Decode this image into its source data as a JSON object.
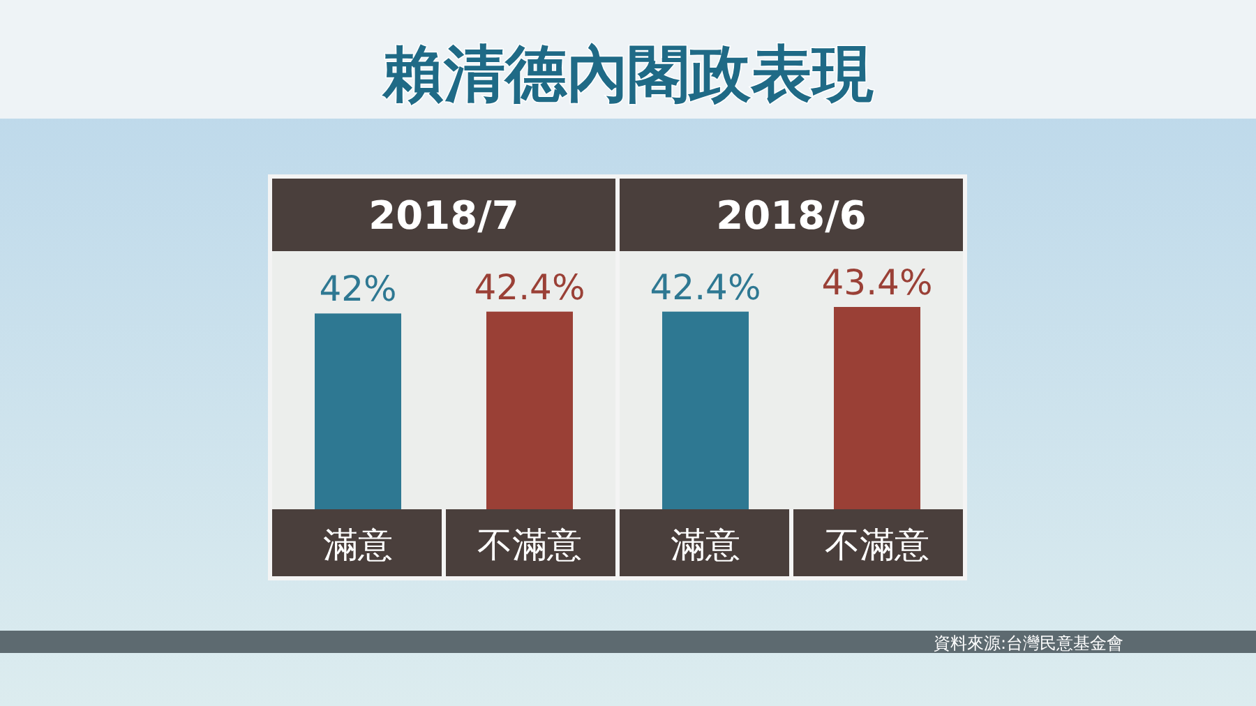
{
  "chart_data": [
    {
      "type": "bar",
      "title": "賴清德內閣政表現",
      "subtitle": "2018/7",
      "categories": [
        "滿意",
        "不滿意"
      ],
      "values": [
        42,
        42.4
      ],
      "value_labels": [
        "42%",
        "42.4%"
      ],
      "colors": [
        "#2e7892",
        "#9a4036"
      ]
    },
    {
      "type": "bar",
      "subtitle": "2018/6",
      "categories": [
        "滿意",
        "不滿意"
      ],
      "values": [
        42.4,
        43.4
      ],
      "value_labels": [
        "42.4%",
        "43.4%"
      ],
      "colors": [
        "#2e7892",
        "#9a4036"
      ],
      "annotations": [
        "資料來源:台灣民意基金會"
      ]
    }
  ]
}
